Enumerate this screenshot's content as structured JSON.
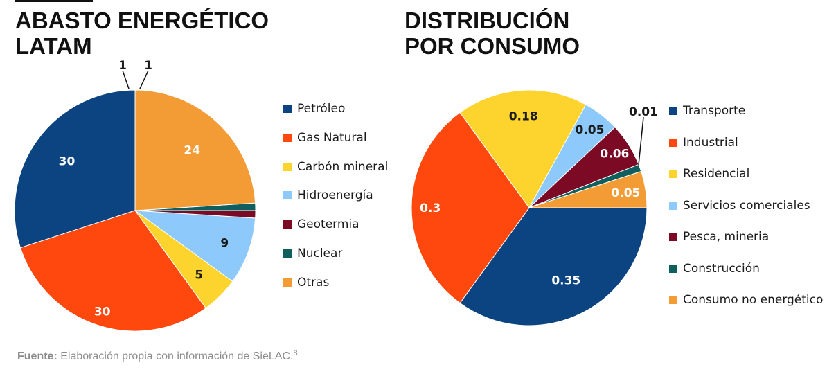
{
  "source": {
    "label": "Fuente:",
    "text": "Elaboración propia con información de SieLAC.",
    "note": "8"
  },
  "chart_data": [
    {
      "type": "pie",
      "title": [
        "ABASTO ENERGÉTICO",
        "LATAM"
      ],
      "legend_position": "right",
      "start": "top",
      "direction": "counterclockwise",
      "slices": [
        {
          "name": "Petróleo",
          "value": 30,
          "label": "30",
          "color": "#0b4481",
          "label_color": "#ffffff"
        },
        {
          "name": "Gas Natural",
          "value": 30,
          "label": "30",
          "color": "#fe480e",
          "label_color": "#ffffff"
        },
        {
          "name": "Carbón mineral",
          "value": 5,
          "label": "5",
          "color": "#fdd42d",
          "label_color": "#1a1a1a"
        },
        {
          "name": "Hidroenergía",
          "value": 9,
          "label": "9",
          "color": "#8dc9fa",
          "label_color": "#1a1a1a"
        },
        {
          "name": "Geotermia",
          "value": 1,
          "label": "1",
          "color": "#7d0a24",
          "label_color": "#1a1a1a"
        },
        {
          "name": "Nuclear",
          "value": 1,
          "label": "1",
          "color": "#0f5f5f",
          "label_color": "#1a1a1a"
        },
        {
          "name": "Otras",
          "value": 24,
          "label": "24",
          "color": "#f39c36",
          "label_color": "#ffffff"
        }
      ]
    },
    {
      "type": "pie",
      "title": [
        "DISTRIBUCIÓN",
        "POR CONSUMO"
      ],
      "legend_position": "right",
      "start": "right",
      "direction": "clockwise",
      "slices": [
        {
          "name": "Transporte",
          "value": 0.35,
          "label": "0.35",
          "color": "#0b4481",
          "label_color": "#ffffff"
        },
        {
          "name": "Industrial",
          "value": 0.3,
          "label": "0.3",
          "color": "#fe480e",
          "label_color": "#ffffff"
        },
        {
          "name": "Residencial",
          "value": 0.18,
          "label": "0.18",
          "color": "#fdd42d",
          "label_color": "#1a1a1a"
        },
        {
          "name": "Servicios comerciales",
          "value": 0.05,
          "label": "0.05",
          "color": "#8dc9fa",
          "label_color": "#1a1a1a"
        },
        {
          "name": "Pesca, mineria",
          "value": 0.06,
          "label": "0.06",
          "color": "#7d0a24",
          "label_color": "#ffffff"
        },
        {
          "name": "Construcción",
          "value": 0.01,
          "label": "0.01",
          "color": "#0f5f5f",
          "label_color": "#1a1a1a"
        },
        {
          "name": "Consumo no energético",
          "value": 0.05,
          "label": "0.05",
          "color": "#f39c36",
          "label_color": "#ffffff"
        }
      ]
    }
  ]
}
